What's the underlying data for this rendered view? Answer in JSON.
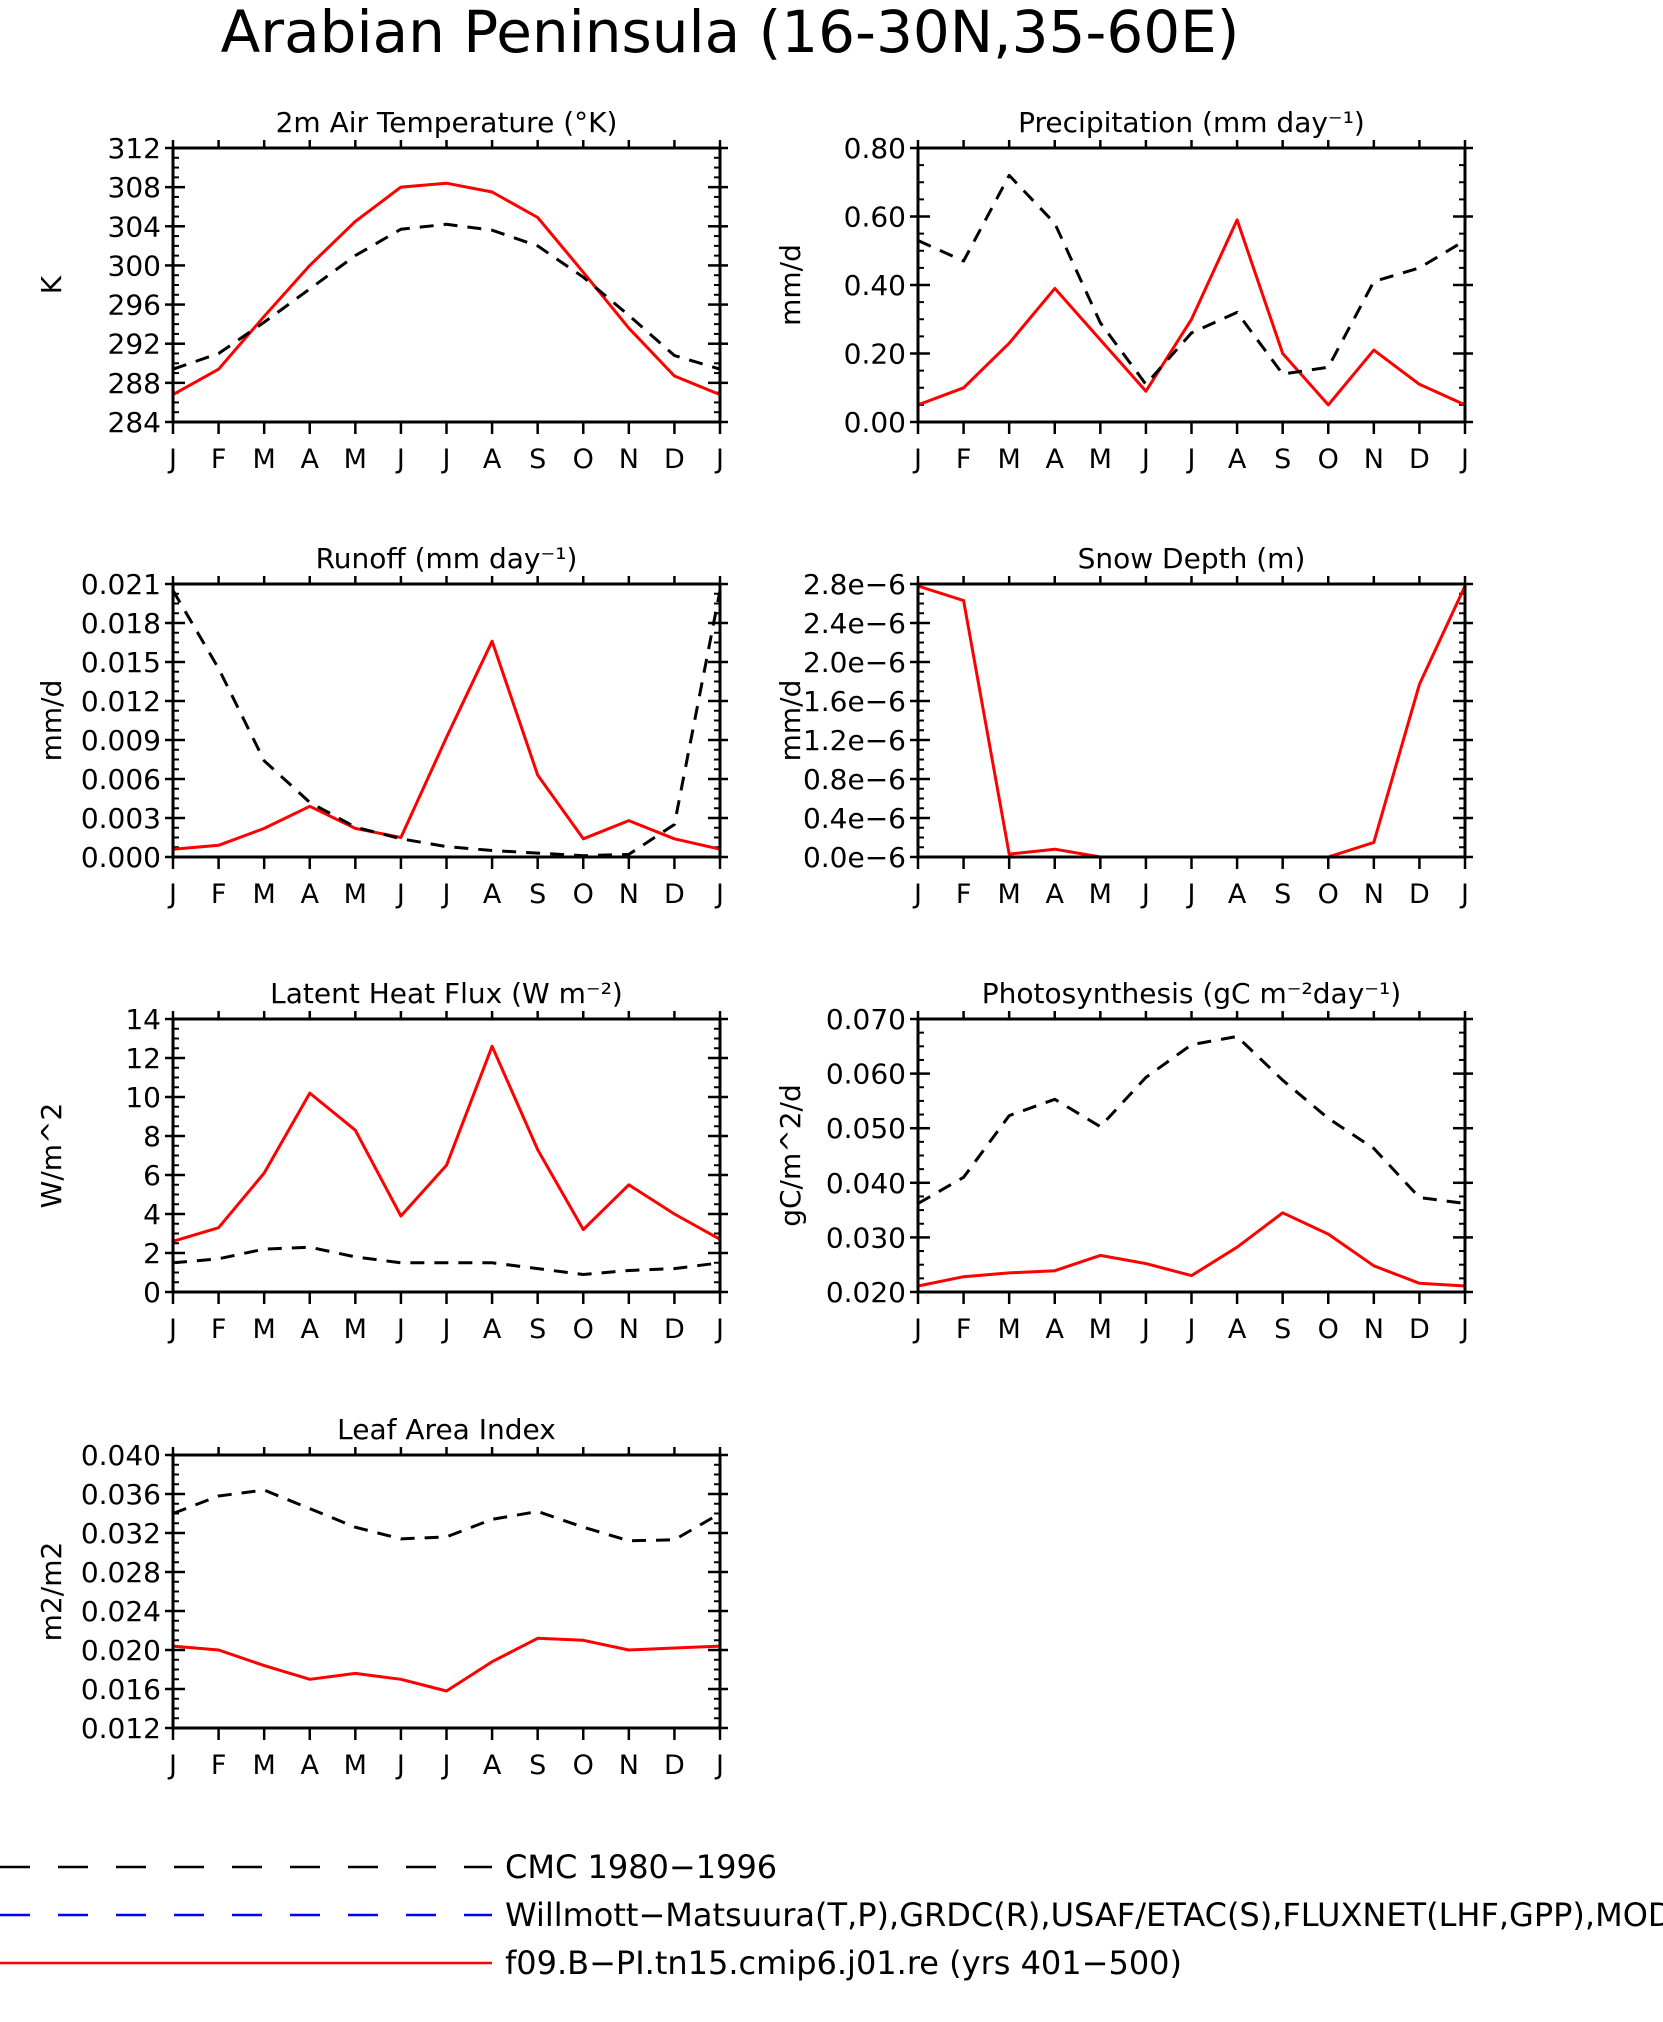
{
  "figure_title": "Arabian Peninsula (16-30N,35-60E)",
  "months": [
    "J",
    "F",
    "M",
    "A",
    "M",
    "J",
    "J",
    "A",
    "S",
    "O",
    "N",
    "D",
    "J"
  ],
  "colors": {
    "model": "#ff0000",
    "obs_cmc": "#000000",
    "obs_wm": "#0000ff",
    "axis": "#000000"
  },
  "legend": [
    {
      "label": "CMC 1980−1996",
      "color": "#000000",
      "style": "dashed"
    },
    {
      "label": "Willmott−Matsuura(T,P),GRDC(R),USAF/ETAC(S),FLUXNET(LHF,GPP),MODIS(",
      "color": "#0000ff",
      "style": "dashed"
    },
    {
      "label": "f09.B−PI.tn15.cmip6.j01.re (yrs 401−500)",
      "color": "#ff0000",
      "style": "solid"
    }
  ],
  "chart_data": [
    {
      "type": "line",
      "title": "2m Air Temperature (°K)",
      "ylabel": "K",
      "ylim": [
        284,
        312
      ],
      "yticks": [
        "284",
        "288",
        "292",
        "296",
        "300",
        "304",
        "308",
        "312"
      ],
      "series": [
        {
          "name": "f09.B−PI.tn15.cmip6.j01.re (yrs 401−500)",
          "style": "solid",
          "values": [
            286.8,
            289.4,
            294.8,
            300.0,
            304.5,
            308.0,
            308.4,
            307.5,
            304.9,
            299.3,
            293.6,
            288.7,
            286.8
          ]
        },
        {
          "name": "CMC 1980−1996",
          "style": "dashed",
          "values": [
            289.4,
            291.0,
            294.2,
            297.6,
            301.0,
            303.7,
            304.2,
            303.6,
            302.0,
            298.8,
            294.9,
            290.8,
            289.4
          ]
        }
      ]
    },
    {
      "type": "line",
      "title": "Precipitation (mm day⁻¹)",
      "ylabel": "mm/d",
      "ylim": [
        0.0,
        0.8
      ],
      "yticks": [
        "0.00",
        "0.20",
        "0.40",
        "0.60",
        "0.80"
      ],
      "series": [
        {
          "name": "f09.B−PI.tn15.cmip6.j01.re (yrs 401−500)",
          "style": "solid",
          "values": [
            0.05,
            0.1,
            0.23,
            0.39,
            0.24,
            0.09,
            0.3,
            0.59,
            0.2,
            0.05,
            0.21,
            0.11,
            0.05
          ]
        },
        {
          "name": "CMC 1980−1996",
          "style": "dashed",
          "values": [
            0.53,
            0.47,
            0.72,
            0.58,
            0.29,
            0.11,
            0.26,
            0.32,
            0.14,
            0.16,
            0.41,
            0.45,
            0.53
          ]
        }
      ]
    },
    {
      "type": "line",
      "title": "Runoff (mm day⁻¹)",
      "ylabel": "mm/d",
      "ylim": [
        0.0,
        0.021
      ],
      "yticks": [
        "0.000",
        "0.003",
        "0.006",
        "0.009",
        "0.012",
        "0.015",
        "0.018",
        "0.021"
      ],
      "series": [
        {
          "name": "f09.B−PI.tn15.cmip6.j01.re (yrs 401−500)",
          "style": "solid",
          "values": [
            0.0006,
            0.0009,
            0.0022,
            0.0039,
            0.0022,
            0.0015,
            0.0092,
            0.0166,
            0.0063,
            0.0014,
            0.0028,
            0.0014,
            0.0006
          ]
        },
        {
          "name": "CMC 1980−1996",
          "style": "dashed",
          "values": [
            0.0205,
            0.0145,
            0.0074,
            0.0042,
            0.0023,
            0.0014,
            0.0008,
            0.0005,
            0.0003,
            0.0001,
            0.0002,
            0.0025,
            0.0205
          ]
        }
      ]
    },
    {
      "type": "line",
      "title": "Snow Depth (m)",
      "ylabel": "mm/d",
      "ylim": [
        0.0,
        2.8e-06
      ],
      "yticks": [
        "0.0e−6",
        "0.4e−6",
        "0.8e−6",
        "1.2e−6",
        "1.6e−6",
        "2.0e−6",
        "2.4e−6",
        "2.8e−6"
      ],
      "series": [
        {
          "name": "f09.B−PI.tn15.cmip6.j01.re (yrs 401−500)",
          "style": "solid",
          "values": [
            2.78e-06,
            2.63e-06,
            3e-08,
            8e-08,
            0.0,
            0.0,
            0.0,
            0.0,
            0.0,
            0.0,
            1.5e-07,
            1.77e-06,
            2.78e-06
          ]
        },
        {
          "name": "CMC 1980−1996",
          "style": "dashed",
          "values": [
            0,
            0,
            0,
            0,
            0,
            0,
            0,
            0,
            0,
            0,
            0,
            0,
            0
          ]
        }
      ]
    },
    {
      "type": "line",
      "title": "Latent Heat Flux (W m⁻²)",
      "ylabel": "W/m^2",
      "ylim": [
        0,
        14
      ],
      "yticks": [
        "0",
        "2",
        "4",
        "6",
        "8",
        "10",
        "12",
        "14"
      ],
      "series": [
        {
          "name": "f09.B−PI.tn15.cmip6.j01.re (yrs 401−500)",
          "style": "solid",
          "values": [
            2.6,
            3.3,
            6.1,
            10.2,
            8.3,
            3.9,
            6.5,
            12.6,
            7.3,
            3.2,
            5.5,
            4.0,
            2.7
          ]
        },
        {
          "name": "CMC 1980−1996",
          "style": "dashed",
          "values": [
            1.5,
            1.7,
            2.2,
            2.3,
            1.8,
            1.5,
            1.5,
            1.5,
            1.2,
            0.9,
            1.1,
            1.2,
            1.5
          ]
        }
      ]
    },
    {
      "type": "line",
      "title": "Photosynthesis (gC m⁻²day⁻¹)",
      "ylabel": "gC/m^2/d",
      "ylim": [
        0.02,
        0.07
      ],
      "yticks": [
        "0.020",
        "0.030",
        "0.040",
        "0.050",
        "0.060",
        "0.070"
      ],
      "series": [
        {
          "name": "f09.B−PI.tn15.cmip6.j01.re (yrs 401−500)",
          "style": "solid",
          "values": [
            0.0211,
            0.0228,
            0.0235,
            0.0239,
            0.0267,
            0.0252,
            0.023,
            0.0282,
            0.0345,
            0.0306,
            0.0248,
            0.0216,
            0.0211
          ]
        },
        {
          "name": "CMC 1980−1996",
          "style": "dashed",
          "values": [
            0.0362,
            0.041,
            0.0523,
            0.0553,
            0.0503,
            0.0593,
            0.0653,
            0.0668,
            0.0588,
            0.0518,
            0.0463,
            0.0373,
            0.0362
          ]
        }
      ]
    },
    {
      "type": "line",
      "title": "Leaf Area Index",
      "ylabel": "m2/m2",
      "ylim": [
        0.012,
        0.04
      ],
      "yticks": [
        "0.012",
        "0.016",
        "0.020",
        "0.024",
        "0.028",
        "0.032",
        "0.036",
        "0.040"
      ],
      "series": [
        {
          "name": "f09.B−PI.tn15.cmip6.j01.re (yrs 401−500)",
          "style": "solid",
          "values": [
            0.0204,
            0.02,
            0.0184,
            0.017,
            0.0176,
            0.017,
            0.0158,
            0.0188,
            0.0212,
            0.021,
            0.02,
            0.0202,
            0.0204
          ]
        },
        {
          "name": "CMC 1980−1996",
          "style": "dashed",
          "values": [
            0.034,
            0.0358,
            0.0364,
            0.0345,
            0.0326,
            0.0314,
            0.0316,
            0.0334,
            0.0342,
            0.0326,
            0.0312,
            0.0313,
            0.034
          ]
        }
      ]
    }
  ]
}
